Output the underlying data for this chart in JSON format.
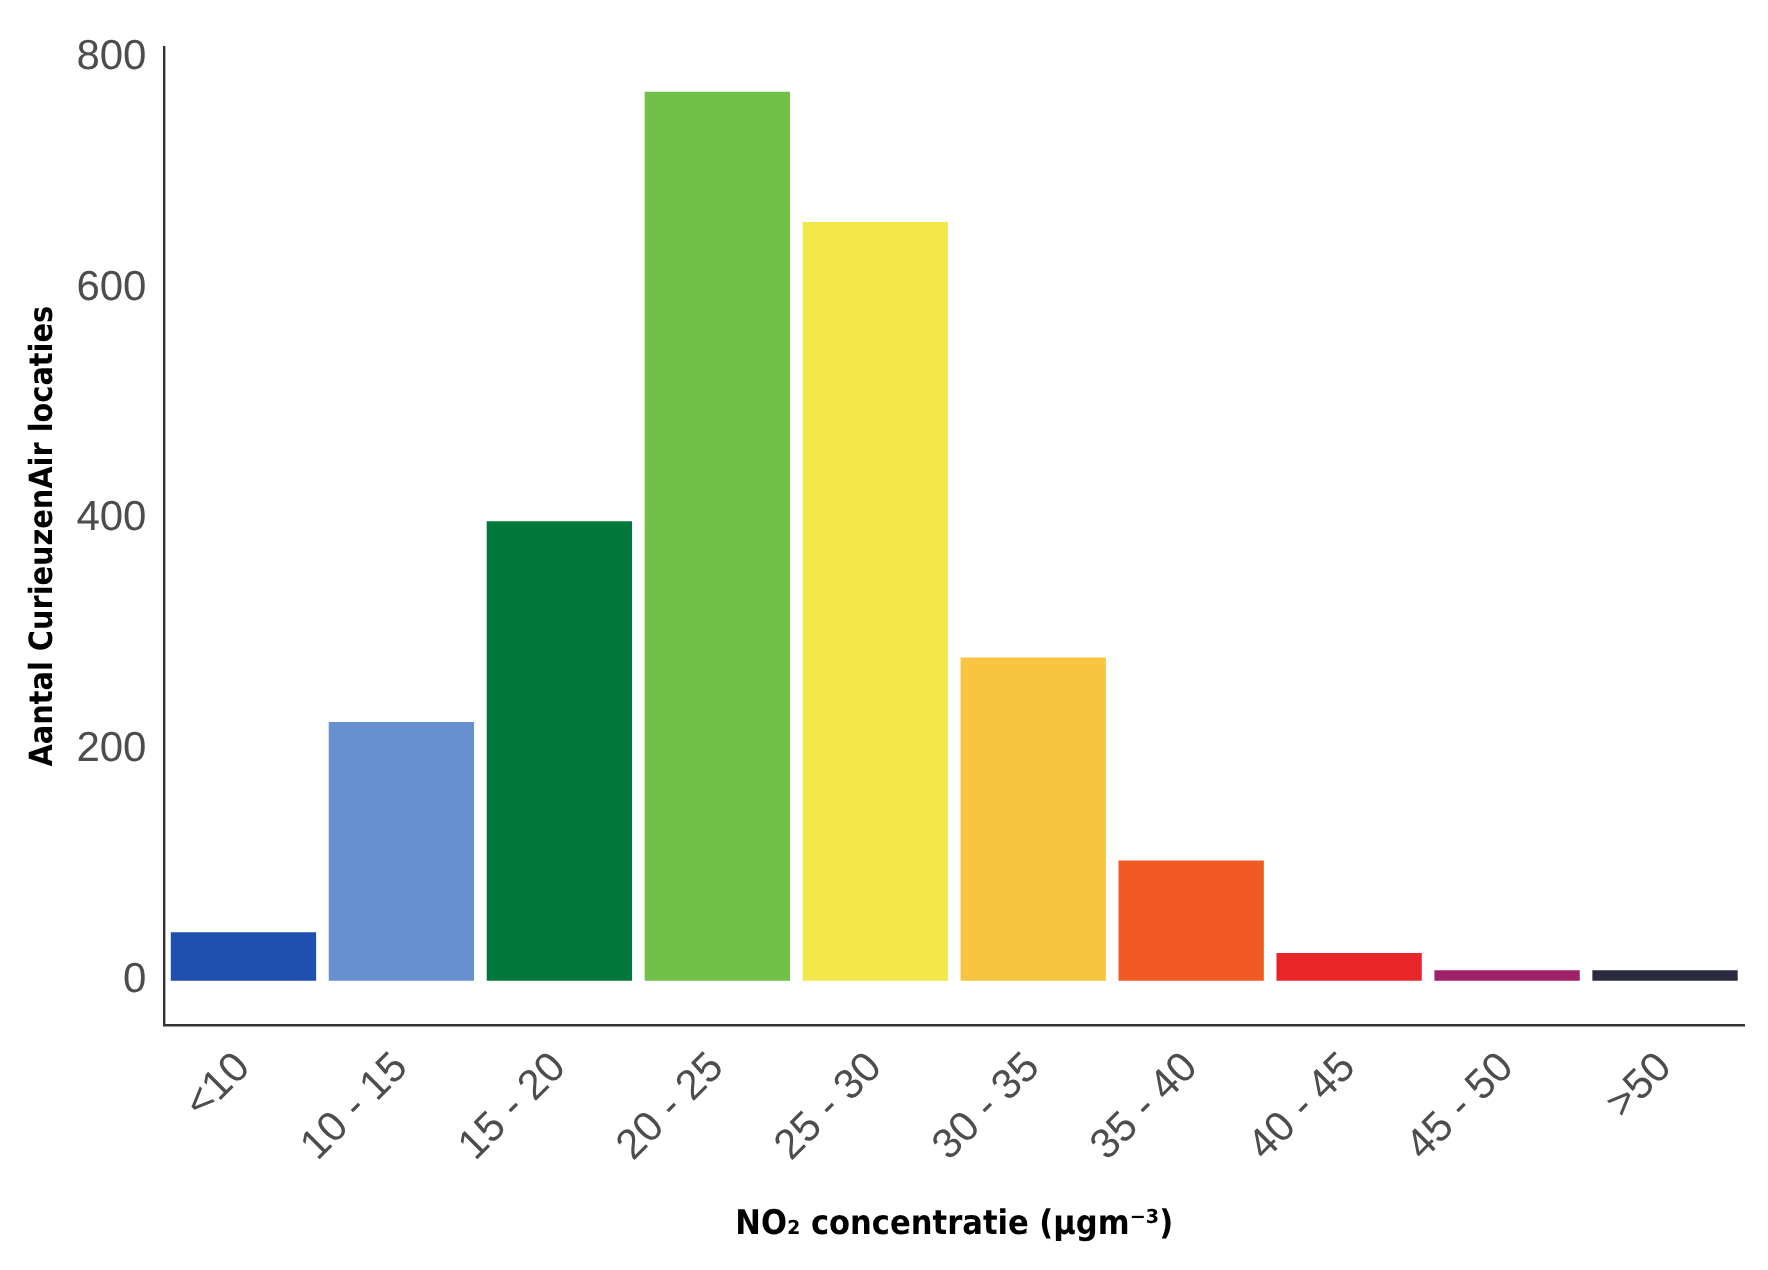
{
  "chart_data": {
    "type": "bar",
    "xlabel": "NO₂ concentratie (µgm⁻³)",
    "ylabel": "Aantal CurieuzenAir locaties",
    "categories": [
      "<10",
      "10 - 15",
      "15 - 20",
      "20 - 25",
      "25 - 30",
      "30 - 35",
      "35 - 40",
      "40 - 45",
      "45 - 50",
      ">50"
    ],
    "values": [
      42,
      224,
      398,
      770,
      657,
      280,
      104,
      24,
      9,
      9
    ],
    "colors": [
      "#1f4fb0",
      "#6690d0",
      "#00783a",
      "#70c04a",
      "#f2e84c",
      "#f8c540",
      "#f05a22",
      "#e8262a",
      "#a0206a",
      "#2a2a40"
    ],
    "ylim": [
      -38.5,
      808.5
    ],
    "yticks": [
      0,
      200,
      400,
      600,
      800
    ],
    "grid": false,
    "legend": false
  }
}
